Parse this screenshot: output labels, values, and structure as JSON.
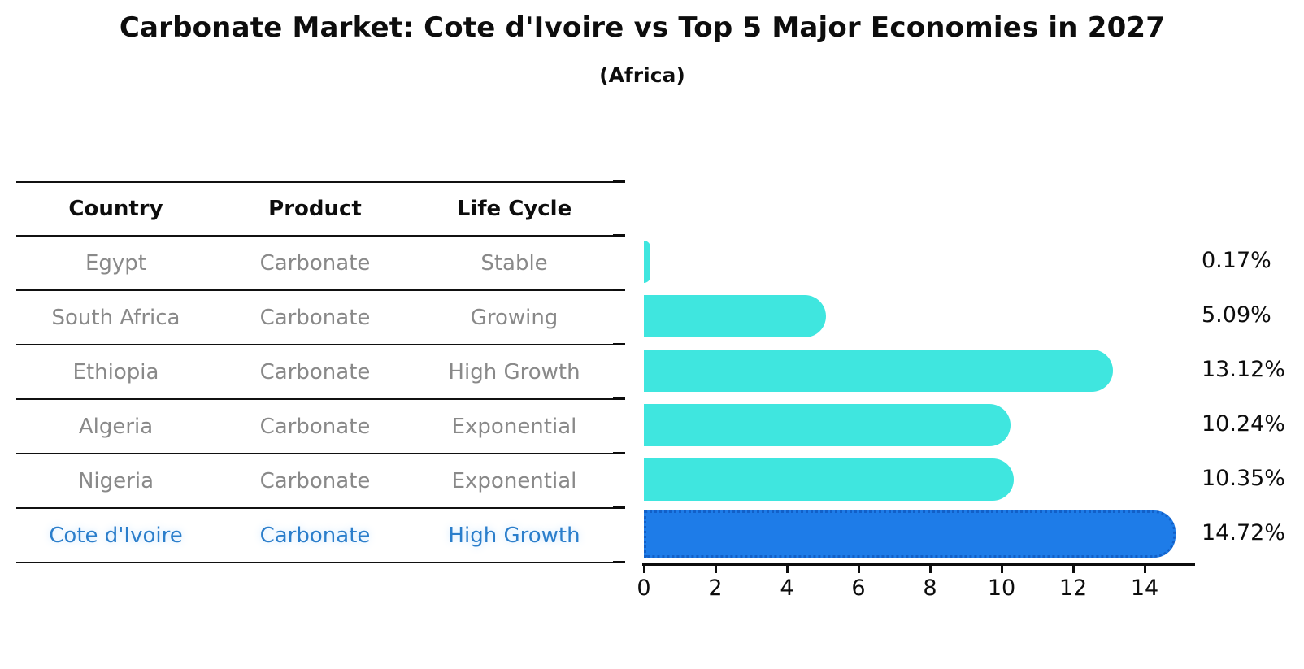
{
  "title": "Carbonate Market: Cote d'Ivoire vs Top 5 Major Economies in 2027",
  "subtitle": "(Africa)",
  "table": {
    "headers": [
      "Country",
      "Product",
      "Life Cycle"
    ],
    "rows": [
      {
        "country": "Egypt",
        "product": "Carbonate",
        "life_cycle": "Stable",
        "highlight": false
      },
      {
        "country": "South Africa",
        "product": "Carbonate",
        "life_cycle": "Growing",
        "highlight": false
      },
      {
        "country": "Ethiopia",
        "product": "Carbonate",
        "life_cycle": "High Growth",
        "highlight": false
      },
      {
        "country": "Algeria",
        "product": "Carbonate",
        "life_cycle": "Exponential",
        "highlight": false
      },
      {
        "country": "Nigeria",
        "product": "Carbonate",
        "life_cycle": "Exponential",
        "highlight": false
      },
      {
        "country": "Cote d'Ivoire",
        "product": "Carbonate",
        "life_cycle": "High Growth",
        "highlight": true
      }
    ]
  },
  "chart_data": {
    "type": "bar",
    "orientation": "horizontal",
    "title": "Carbonate Market: Cote d'Ivoire vs Top 5 Major Economies in 2027",
    "subtitle": "(Africa)",
    "categories": [
      "Egypt",
      "South Africa",
      "Ethiopia",
      "Algeria",
      "Nigeria",
      "Cote d'Ivoire"
    ],
    "values": [
      0.17,
      5.09,
      13.12,
      10.24,
      10.35,
      14.72
    ],
    "bar_labels": [
      "0.17%",
      "5.09%",
      "13.12%",
      "10.24%",
      "10.35%",
      "14.72%"
    ],
    "xlabel": "",
    "ylabel": "",
    "xlim": [
      0,
      15.5
    ],
    "x_ticks": [
      0,
      2,
      4,
      6,
      8,
      10,
      12,
      14
    ],
    "grid": false,
    "legend": false,
    "highlight_index": 5,
    "colors": {
      "bar": "#3fe6df",
      "highlight_bar": "#1e7ce8",
      "highlight_edge": "#1260c8",
      "highlight_text": "#2b7ecb",
      "row_text": "#898989",
      "text": "#0d0d0d"
    }
  }
}
